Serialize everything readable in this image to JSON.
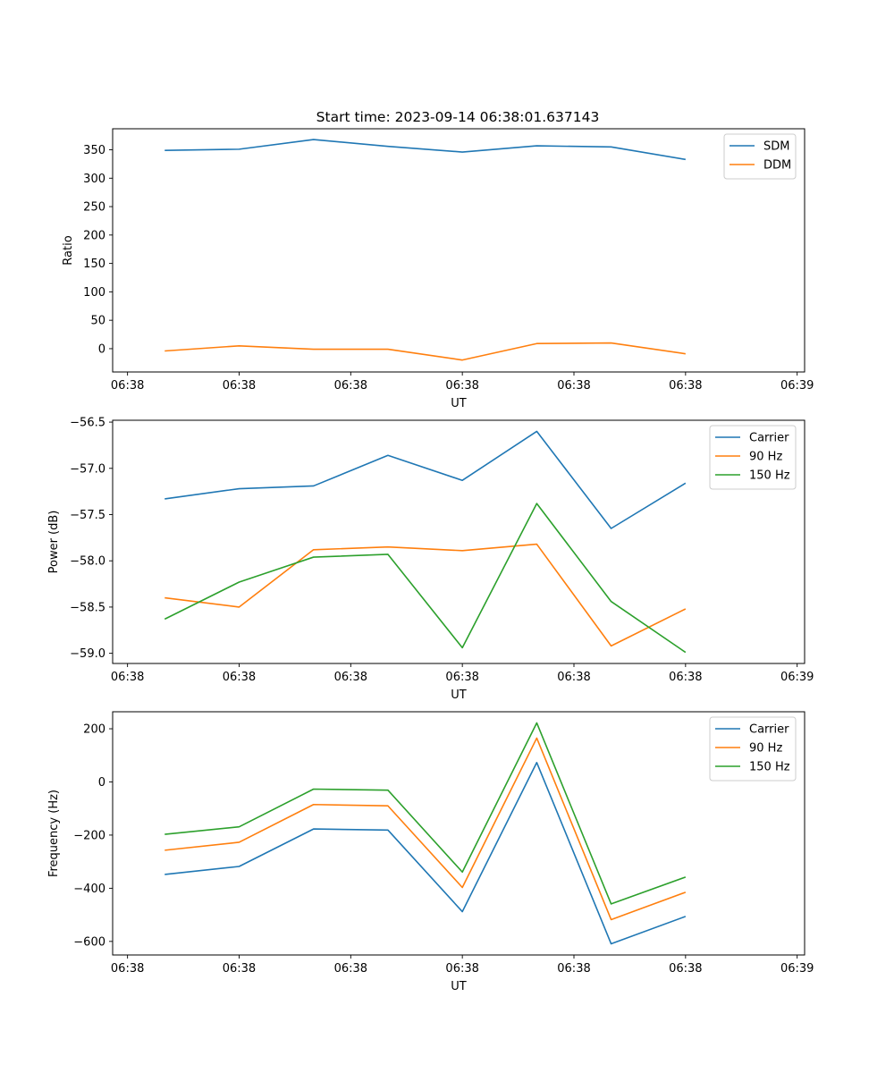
{
  "chart_data": [
    {
      "type": "line",
      "title": "Start time: 2023-09-14 06:38:01.637143",
      "xlabel": "UT",
      "ylabel": "Ratio",
      "x": [
        1,
        2,
        3,
        4,
        5,
        6,
        7,
        8
      ],
      "xlim": [
        0.3,
        9.6
      ],
      "xticks": [
        0.5,
        2,
        3.5,
        5,
        6.5,
        8,
        9.5
      ],
      "xtick_labels": [
        "06:38",
        "06:38",
        "06:38",
        "06:38",
        "06:38",
        "06:38",
        "06:39"
      ],
      "ylim": [
        -41,
        387
      ],
      "yticks": [
        0,
        50,
        100,
        150,
        200,
        250,
        300,
        350
      ],
      "ytick_labels": [
        "0",
        "50",
        "100",
        "150",
        "200",
        "250",
        "300",
        "350"
      ],
      "legend_position": "top-right",
      "series": [
        {
          "name": "SDM",
          "color": "#1f77b4",
          "values": [
            349,
            351,
            368,
            356,
            346,
            357,
            355,
            333
          ]
        },
        {
          "name": "DDM",
          "color": "#ff7f0e",
          "values": [
            -4,
            5,
            -1,
            -1,
            -20,
            9,
            10,
            -9
          ]
        }
      ]
    },
    {
      "type": "line",
      "xlabel": "UT",
      "ylabel": "Power (dB)",
      "x": [
        1,
        2,
        3,
        4,
        5,
        6,
        7,
        8
      ],
      "xlim": [
        0.3,
        9.6
      ],
      "xticks": [
        0.5,
        2,
        3.5,
        5,
        6.5,
        8,
        9.5
      ],
      "xtick_labels": [
        "06:38",
        "06:38",
        "06:38",
        "06:38",
        "06:38",
        "06:38",
        "06:39"
      ],
      "ylim": [
        -59.11,
        -56.48
      ],
      "yticks": [
        -56.5,
        -57.0,
        -57.5,
        -58.0,
        -58.5,
        -59.0
      ],
      "ytick_labels": [
        "−56.5",
        "−57.0",
        "−57.5",
        "−58.0",
        "−58.5",
        "−59.0"
      ],
      "legend_position": "top-right",
      "series": [
        {
          "name": "Carrier",
          "color": "#1f77b4",
          "values": [
            -57.33,
            -57.22,
            -57.19,
            -56.86,
            -57.13,
            -56.6,
            -57.65,
            -57.16
          ]
        },
        {
          "name": "90 Hz",
          "color": "#ff7f0e",
          "values": [
            -58.4,
            -58.5,
            -57.88,
            -57.85,
            -57.89,
            -57.82,
            -58.92,
            -58.52
          ]
        },
        {
          "name": "150 Hz",
          "color": "#2ca02c",
          "values": [
            -58.63,
            -58.23,
            -57.96,
            -57.93,
            -58.94,
            -57.38,
            -58.44,
            -58.99
          ]
        }
      ]
    },
    {
      "type": "line",
      "xlabel": "UT",
      "ylabel": "Frequency (Hz)",
      "x": [
        1,
        2,
        3,
        4,
        5,
        6,
        7,
        8
      ],
      "xlim": [
        0.3,
        9.6
      ],
      "xticks": [
        0.5,
        2,
        3.5,
        5,
        6.5,
        8,
        9.5
      ],
      "xtick_labels": [
        "06:38",
        "06:38",
        "06:38",
        "06:38",
        "06:38",
        "06:38",
        "06:39"
      ],
      "ylim": [
        -651,
        264
      ],
      "yticks": [
        200,
        0,
        -200,
        -400,
        -600
      ],
      "ytick_labels": [
        "200",
        "0",
        "−200",
        "−400",
        "−600"
      ],
      "legend_position": "top-right",
      "series": [
        {
          "name": "Carrier",
          "color": "#1f77b4",
          "values": [
            -348,
            -318,
            -177,
            -181,
            -488,
            73,
            -609,
            -506
          ]
        },
        {
          "name": "90 Hz",
          "color": "#ff7f0e",
          "values": [
            -257,
            -227,
            -85,
            -90,
            -397,
            165,
            -518,
            -415
          ]
        },
        {
          "name": "150 Hz",
          "color": "#2ca02c",
          "values": [
            -197,
            -169,
            -27,
            -31,
            -339,
            222,
            -459,
            -358
          ]
        }
      ]
    }
  ]
}
